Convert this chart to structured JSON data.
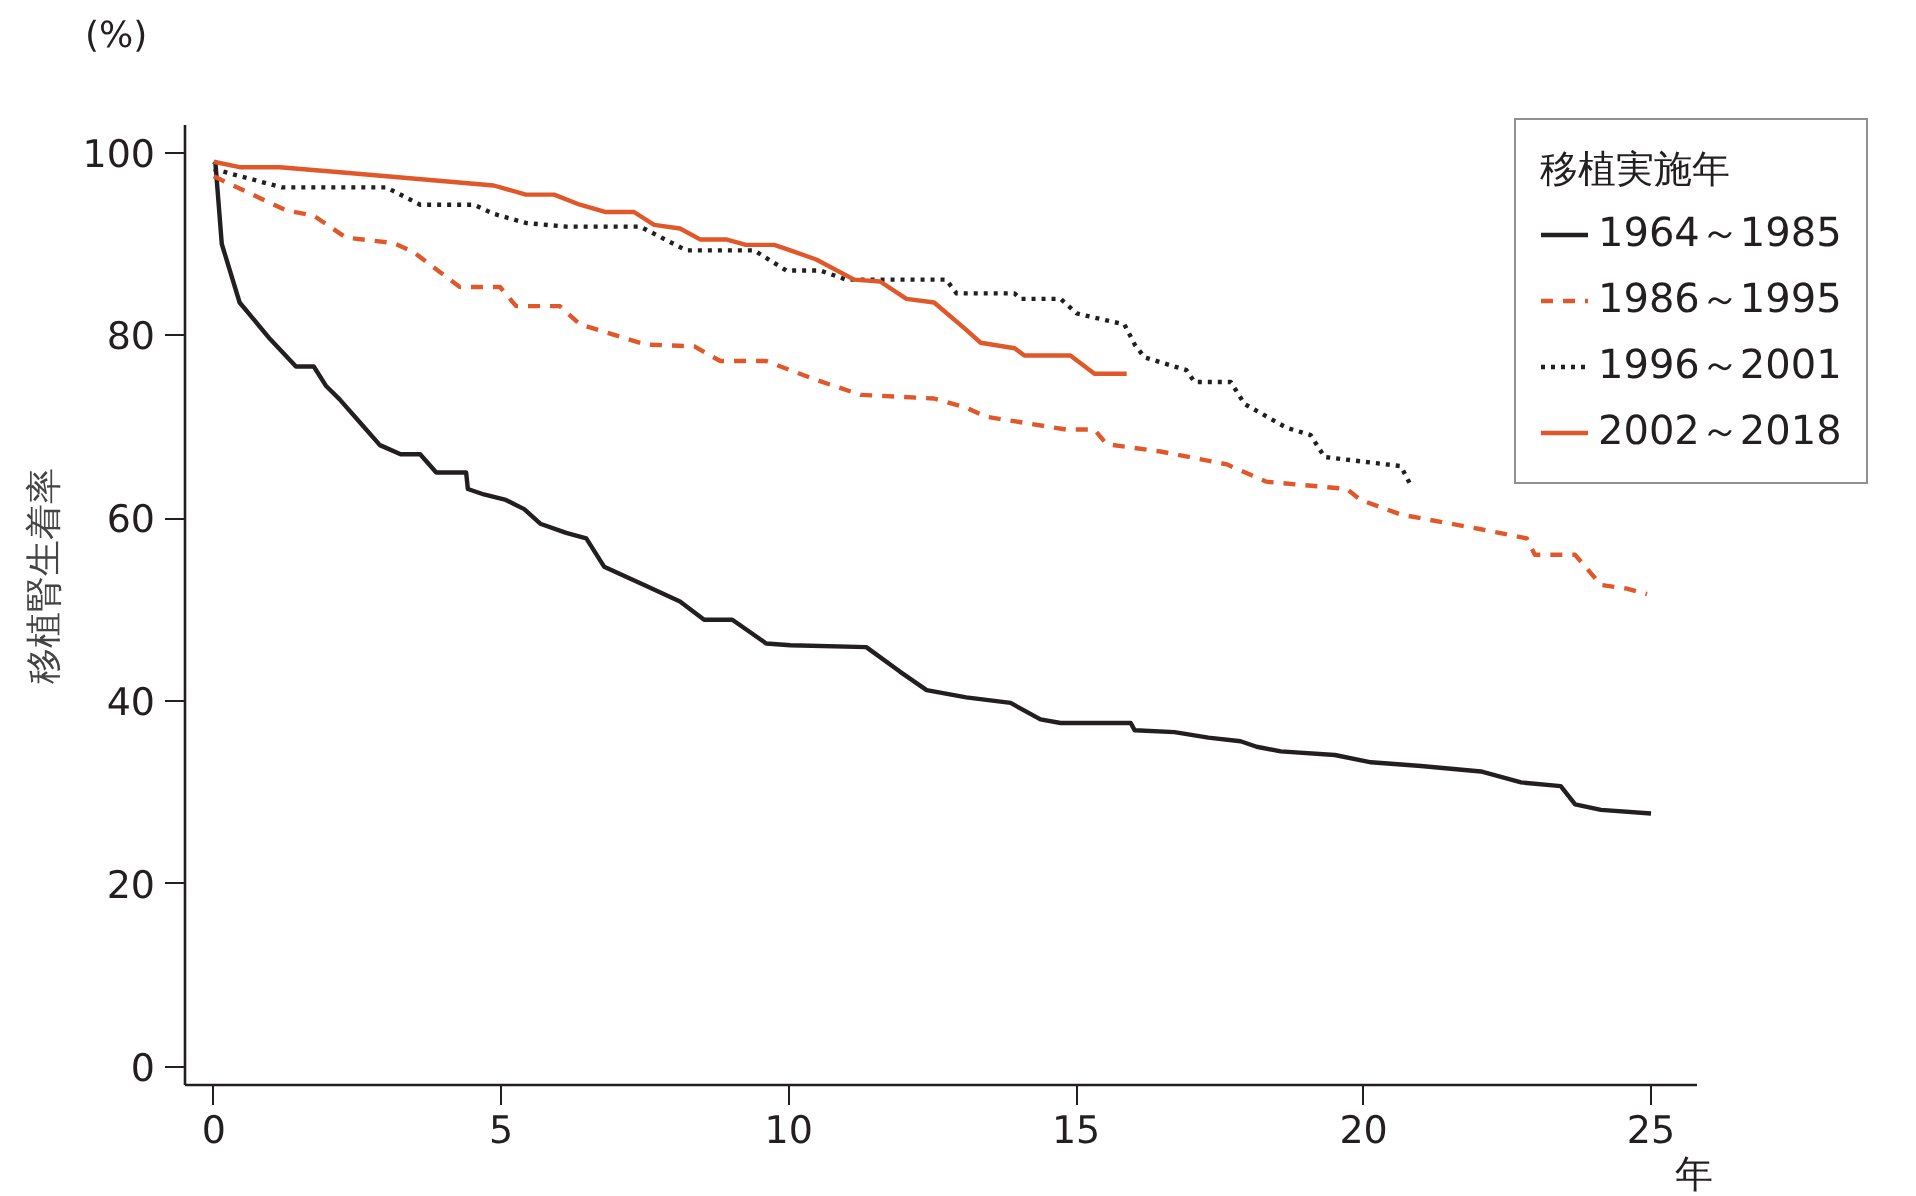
{
  "chart_data": {
    "type": "line",
    "xlabel": "年",
    "ylabel": "移植腎生着率",
    "annotations": [
      "(%)"
    ],
    "legend_title": "移植実施年",
    "legend": "top right",
    "grid": false,
    "xlim": [
      -0.5,
      25.8
    ],
    "ylim": [
      -2,
      103
    ],
    "xticks": [
      0,
      5,
      10,
      15,
      20,
      25
    ],
    "yticks": [
      0,
      20,
      40,
      60,
      80,
      100
    ],
    "series": [
      {
        "name": "1964～1985",
        "color": "#231f20",
        "line_style": "solid",
        "x": [
          0,
          0.03,
          0.14,
          0.45,
          0.98,
          1.43,
          1.74,
          1.95,
          2.19,
          2.54,
          2.89,
          3.25,
          3.59,
          3.87,
          4.39,
          4.42,
          4.7,
          5.08,
          5.4,
          5.68,
          6.13,
          6.48,
          6.79,
          7.42,
          8.11,
          8.53,
          9.02,
          9.61,
          10.03,
          11.35,
          11.94,
          12.4,
          13.09,
          13.86,
          14.38,
          14.73,
          15.95,
          16.02,
          16.71,
          17.3,
          17.86,
          18.14,
          18.56,
          19.5,
          20.13,
          21.0,
          22.04,
          22.74,
          23.43,
          23.68,
          24.13,
          25
        ],
        "values": [
          99,
          98.8,
          90,
          83.6,
          79.6,
          76.6,
          76.6,
          74.5,
          73,
          70.5,
          68,
          67,
          67,
          65,
          65,
          63.2,
          62.6,
          62,
          61,
          59.4,
          58.4,
          57.8,
          54.7,
          52.9,
          50.9,
          48.9,
          48.9,
          46.3,
          46.1,
          45.9,
          43.2,
          41.2,
          40.4,
          39.8,
          38,
          37.6,
          37.6,
          36.8,
          36.6,
          36,
          35.6,
          35,
          34.5,
          34.1,
          33.3,
          32.9,
          32.3,
          31.1,
          30.7,
          28.7,
          28.1,
          27.7
        ]
      },
      {
        "name": "1986～1995",
        "color": "#e0582a",
        "line_style": "dashed",
        "x": [
          0,
          1.25,
          1.74,
          2.3,
          3.13,
          3.48,
          4.28,
          4.98,
          5.26,
          6.02,
          6.37,
          7.52,
          8.36,
          8.81,
          9.61,
          10.45,
          11.25,
          12.53,
          13.09,
          13.44,
          14.83,
          15.32,
          15.53,
          16.47,
          17.62,
          18.31,
          19.71,
          19.95,
          20.65,
          22.04,
          22.84,
          22.98,
          23.68,
          24.13,
          24.58,
          24.93
        ],
        "values": [
          97.4,
          93.7,
          93.1,
          90.7,
          90.1,
          89.1,
          85.3,
          85.3,
          83.2,
          83.2,
          81.2,
          79,
          78.8,
          77.2,
          77.2,
          75.2,
          73.5,
          73.1,
          72.1,
          71.1,
          69.7,
          69.7,
          68.1,
          67.3,
          65.9,
          64,
          63.2,
          62,
          60.4,
          58.8,
          57.8,
          56,
          56,
          52.7,
          52.3,
          51.7
        ]
      },
      {
        "name": "1996～2001",
        "color": "#231f20",
        "line_style": "dotted",
        "x": [
          0,
          1.18,
          3.0,
          3.59,
          4.53,
          4.87,
          5.43,
          6.13,
          7.42,
          8.22,
          9.4,
          9.96,
          10.55,
          11.0,
          12.74,
          12.92,
          13.93,
          14.03,
          14.73,
          15.01,
          15.84,
          16.02,
          16.19,
          16.92,
          17.06,
          17.69,
          17.93,
          18.66,
          19.08,
          19.32,
          20.65,
          20.82
        ],
        "values": [
          98.2,
          96.2,
          96.2,
          94.3,
          94.3,
          93.3,
          92.3,
          91.9,
          91.9,
          89.3,
          89.3,
          87.1,
          87.1,
          86.1,
          86.1,
          84.6,
          84.6,
          84,
          84,
          82.4,
          81.2,
          79,
          77.6,
          76.2,
          74.9,
          74.9,
          72.5,
          69.9,
          69.1,
          66.7,
          65.7,
          63.6
        ]
      },
      {
        "name": "2002～2018",
        "color": "#e0582a",
        "line_style": "solid",
        "x": [
          0,
          0.45,
          1.15,
          2.3,
          4.87,
          5.43,
          5.92,
          6.37,
          6.82,
          7.31,
          7.66,
          8.11,
          8.46,
          8.91,
          9.26,
          9.75,
          10.03,
          10.48,
          11.14,
          11.59,
          12.05,
          12.53,
          13.09,
          13.34,
          13.93,
          14.1,
          14.9,
          15.32,
          15.88
        ],
        "values": [
          99,
          98.4,
          98.4,
          97.8,
          96.4,
          95.4,
          95.4,
          94.3,
          93.5,
          93.5,
          92.1,
          91.7,
          90.5,
          90.5,
          89.9,
          89.9,
          89.3,
          88.3,
          86.1,
          85.9,
          84,
          83.6,
          80.6,
          79.2,
          78.6,
          77.8,
          77.8,
          75.8,
          75.8
        ]
      }
    ]
  }
}
